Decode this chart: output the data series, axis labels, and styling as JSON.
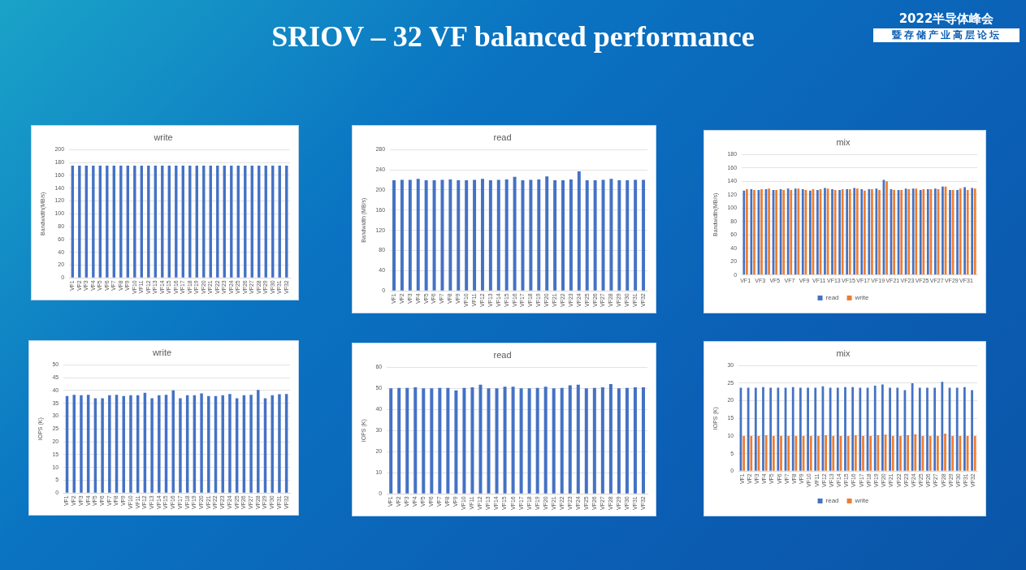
{
  "chart_data": [
    {
      "type": "bar",
      "title": "write",
      "ylabel": "Bandwidth(MB/s)",
      "categories": [
        "VF1",
        "VF2",
        "VF3",
        "VF4",
        "VF5",
        "VF6",
        "VF7",
        "VF8",
        "VF9",
        "VF10",
        "VF11",
        "VF12",
        "VF13",
        "VF14",
        "VF15",
        "VF16",
        "VF17",
        "VF18",
        "VF19",
        "VF20",
        "VF21",
        "VF22",
        "VF23",
        "VF24",
        "VF25",
        "VF26",
        "VF27",
        "VF28",
        "VF29",
        "VF30",
        "VF31",
        "VF32"
      ],
      "values": [
        175,
        175,
        175,
        175,
        175,
        175,
        175,
        175,
        175,
        175,
        175,
        175,
        175,
        175,
        175,
        175,
        175,
        175,
        175,
        175,
        175,
        175,
        175,
        175,
        175,
        175,
        175,
        175,
        175,
        175,
        175,
        175
      ],
      "color": "#4472c4",
      "ylim": [
        0,
        200
      ],
      "yticks": [
        0,
        20,
        40,
        60,
        80,
        100,
        120,
        140,
        160,
        180,
        200
      ],
      "grid": "y",
      "legend": false,
      "annotations": [
        "SRIOV – 32 VF balanced performance",
        "2022半导体峰会",
        "暨存储产业高层论坛"
      ]
    },
    {
      "type": "bar",
      "title": "read",
      "ylabel": "Bandwidth (MB/s)",
      "categories": [
        "VF1",
        "VF2",
        "VF3",
        "VF4",
        "VF5",
        "VF6",
        "VF7",
        "VF8",
        "VF9",
        "VF10",
        "VF11",
        "VF12",
        "VF13",
        "VF14",
        "VF15",
        "VF16",
        "VF17",
        "VF18",
        "VF19",
        "VF20",
        "VF21",
        "VF22",
        "VF23",
        "VF24",
        "VF25",
        "VF26",
        "VF27",
        "VF28",
        "VF29",
        "VF30",
        "VF31",
        "VF32"
      ],
      "values": [
        219,
        220,
        220,
        222,
        219,
        219,
        220,
        221,
        219,
        219,
        220,
        222,
        219,
        220,
        221,
        226,
        219,
        220,
        221,
        227,
        219,
        219,
        221,
        237,
        219,
        219,
        220,
        222,
        219,
        219,
        220,
        220
      ],
      "color": "#4472c4",
      "ylim": [
        0,
        280
      ],
      "yticks": [
        0,
        40,
        80,
        120,
        160,
        200,
        240,
        280
      ],
      "grid": "y",
      "legend": false
    },
    {
      "type": "bar",
      "title": "mix",
      "ylabel": "Bandwidth(MB/s)",
      "categories": [
        "VF1",
        null,
        "VF3",
        null,
        "VF5",
        null,
        "VF7",
        null,
        "VF9",
        null,
        "VF11",
        null,
        "VF13",
        null,
        "VF15",
        null,
        "VF17",
        null,
        "VF19",
        null,
        "VF21",
        null,
        "VF23",
        null,
        "VF25",
        null,
        "VF27",
        null,
        "VF29",
        null,
        "VF31",
        null
      ],
      "series": [
        {
          "name": "read",
          "color": "#4472c4",
          "values": [
            126,
            128,
            127,
            128,
            127,
            128,
            129,
            129,
            128,
            126,
            127,
            130,
            128,
            127,
            128,
            130,
            128,
            128,
            129,
            142,
            128,
            127,
            129,
            129,
            127,
            128,
            129,
            132,
            127,
            127,
            131,
            130
          ]
        },
        {
          "name": "write",
          "color": "#ed7d31",
          "values": [
            128,
            127,
            128,
            129,
            127,
            127,
            127,
            129,
            127,
            128,
            128,
            129,
            127,
            128,
            128,
            129,
            126,
            128,
            127,
            140,
            127,
            127,
            128,
            129,
            128,
            128,
            128,
            132,
            127,
            129,
            127,
            129
          ]
        }
      ],
      "ylim": [
        0,
        180
      ],
      "yticks": [
        0,
        20,
        40,
        60,
        80,
        100,
        120,
        140,
        160,
        180
      ],
      "grid": "y",
      "legend": "bottom"
    },
    {
      "type": "bar",
      "title": "write",
      "ylabel": "IOPS (K)",
      "categories": [
        "VF1",
        "VF2",
        "VF3",
        "VF4",
        "VF5",
        "VF6",
        "VF7",
        "VF8",
        "VF9",
        "VF10",
        "VF11",
        "VF12",
        "VF13",
        "VF14",
        "VF15",
        "VF16",
        "VF17",
        "VF18",
        "VF19",
        "VF20",
        "VF21",
        "VF22",
        "VF23",
        "VF24",
        "VF25",
        "VF26",
        "VF27",
        "VF28",
        "VF29",
        "VF30",
        "VF31",
        "VF32"
      ],
      "values": [
        37.8,
        38.3,
        38.1,
        38.3,
        36.9,
        36.9,
        38.1,
        38.3,
        37.8,
        38.1,
        38.1,
        39.1,
        36.9,
        38.1,
        38.3,
        40,
        36.9,
        38.1,
        38.1,
        38.8,
        37.8,
        37.8,
        38.1,
        38.6,
        36.9,
        38.1,
        38.3,
        40.2,
        36.9,
        38.1,
        38.5,
        38.6
      ],
      "color": "#4472c4",
      "ylim": [
        0,
        50
      ],
      "yticks": [
        0,
        5,
        10,
        15,
        20,
        25,
        30,
        35,
        40,
        45,
        50
      ],
      "grid": "y",
      "legend": false
    },
    {
      "type": "bar",
      "title": "read",
      "ylabel": "IOPS (K)",
      "categories": [
        "VF1",
        "VF2",
        "VF3",
        "VF4",
        "VF5",
        "VF6",
        "VF7",
        "VF8",
        "VF9",
        "VF10",
        "VF11",
        "VF12",
        "VF13",
        "VF14",
        "VF15",
        "VF16",
        "VF17",
        "VF18",
        "VF19",
        "VF20",
        "VF21",
        "VF22",
        "VF23",
        "VF24",
        "VF25",
        "VF26",
        "VF27",
        "VF28",
        "VF29",
        "VF30",
        "VF31",
        "VF32"
      ],
      "values": [
        50,
        50.2,
        50.2,
        50.5,
        50,
        50,
        50.2,
        50.2,
        49,
        50.2,
        50.5,
        51.7,
        50,
        50,
        50.8,
        50.8,
        50,
        50,
        50.2,
        50.8,
        50,
        50.2,
        51.4,
        51.7,
        50,
        50.2,
        50.5,
        52,
        50,
        50.2,
        50.5,
        50.5
      ],
      "color": "#4472c4",
      "ylim": [
        0,
        60
      ],
      "yticks": [
        0,
        10,
        20,
        30,
        40,
        50,
        60
      ],
      "grid": "y",
      "legend": false
    },
    {
      "type": "bar",
      "title": "mix",
      "ylabel": "IOPS (K)",
      "categories": [
        "VF1",
        "VF2",
        "VF3",
        "VF4",
        "VF5",
        "VF6",
        "VF7",
        "VF8",
        "VF9",
        "VF10",
        "VF11",
        "VF12",
        "VF13",
        "VF14",
        "VF15",
        "VF16",
        "VF17",
        "VF18",
        "VF19",
        "VF20",
        "VF21",
        "VF22",
        "VF23",
        "VF24",
        "VF25",
        "VF26",
        "VF27",
        "VF28",
        "VF29",
        "VF30",
        "VF31",
        "VF32"
      ],
      "series": [
        {
          "name": "read",
          "color": "#4472c4",
          "values": [
            23.7,
            23.7,
            23.7,
            23.9,
            23.7,
            23.7,
            23.7,
            23.9,
            23.7,
            23.7,
            23.7,
            24.1,
            23.7,
            23.7,
            23.9,
            23.9,
            23.7,
            23.7,
            24.3,
            24.6,
            23.7,
            23.7,
            23,
            25,
            23.7,
            23.7,
            23.7,
            25.4,
            23.7,
            23.7,
            23.9,
            23
          ]
        },
        {
          "name": "write",
          "color": "#ed7d31",
          "values": [
            10,
            10,
            10,
            10.2,
            10,
            10,
            10,
            10,
            10,
            10,
            10,
            10.2,
            10,
            10,
            10,
            10.2,
            10,
            10,
            10.2,
            10.4,
            10,
            10,
            10.2,
            10.5,
            10,
            10,
            10,
            10.7,
            10,
            10,
            10,
            10
          ]
        }
      ],
      "ylim": [
        0,
        30
      ],
      "yticks": [
        0,
        5,
        10,
        15,
        20,
        25,
        30
      ],
      "grid": "y",
      "legend": "bottom"
    }
  ]
}
